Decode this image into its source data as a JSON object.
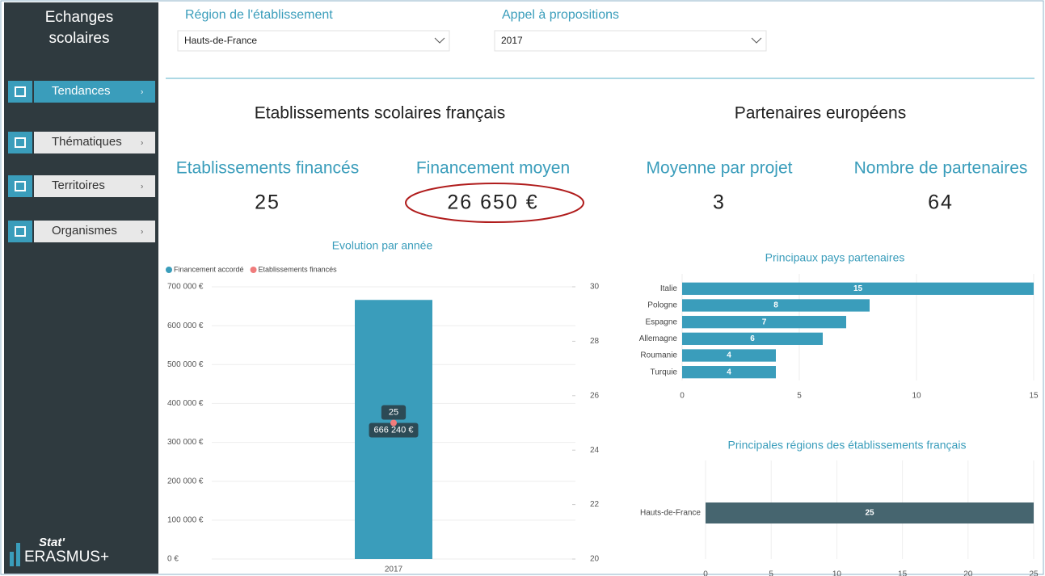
{
  "sidebar": {
    "title": "Echanges scolaires",
    "menu": [
      "Tendances",
      "Thématiques",
      "Territoires",
      "Organismes"
    ],
    "logo": {
      "brand": "Stat'",
      "name": "ERASMUS+"
    }
  },
  "filters": [
    {
      "label": "Région de l'établissement",
      "value": "Hauts-de-France"
    },
    {
      "label": "Appel à propositions",
      "value": "2017"
    }
  ],
  "sections": [
    "Etablissements scolaires français",
    "Partenaires européens"
  ],
  "kpis": [
    {
      "label": "Etablissements financés",
      "value": "25"
    },
    {
      "label": "Financement moyen",
      "value": "26 650 €"
    },
    {
      "label": "Moyenne par projet",
      "value": "3"
    },
    {
      "label": "Nombre de partenaires",
      "value": "64"
    }
  ],
  "chart_data": [
    {
      "type": "bar",
      "title": "Evolution par année",
      "categories": [
        "2017"
      ],
      "series": [
        {
          "name": "Financement accordé",
          "color": "#3a9dbb",
          "type": "bar",
          "values": [
            666240
          ],
          "value_labels": [
            "666 240 €"
          ]
        },
        {
          "name": "Etablissements financés",
          "color": "#f07c7c",
          "type": "line",
          "axis": "y2",
          "values": [
            25
          ]
        }
      ],
      "ylim": [
        0,
        700000
      ],
      "yticks": [
        {
          "value": 0,
          "label": "0 €"
        },
        {
          "value": 100000,
          "label": "100 000 €"
        },
        {
          "value": 200000,
          "label": "200 000 €"
        },
        {
          "value": 300000,
          "label": "300 000 €"
        },
        {
          "value": 400000,
          "label": "400 000 €"
        },
        {
          "value": 500000,
          "label": "500 000 €"
        },
        {
          "value": 600000,
          "label": "600 000 €"
        },
        {
          "value": 700000,
          "label": "700 000 €"
        }
      ],
      "y2lim": [
        20,
        30
      ],
      "y2ticks": [
        20,
        22,
        24,
        26,
        28,
        30
      ],
      "grid": true,
      "legend": "top-left"
    },
    {
      "type": "hbar",
      "title": "Principaux pays partenaires",
      "categories": [
        "Italie",
        "Pologne",
        "Espagne",
        "Allemagne",
        "Roumanie",
        "Turquie"
      ],
      "values": [
        15,
        8,
        7,
        6,
        4,
        4
      ],
      "color": "#3a9dbb",
      "xlim": [
        0,
        15
      ],
      "xticks": [
        0,
        5,
        10,
        15
      ],
      "grid": true
    },
    {
      "type": "hbar",
      "title": "Principales régions des établissements français",
      "categories": [
        "Hauts-de-France"
      ],
      "values": [
        25
      ],
      "color": "#46656f",
      "xlim": [
        0,
        25
      ],
      "xticks": [
        0,
        5,
        10,
        15,
        20,
        25
      ],
      "grid": true
    }
  ]
}
